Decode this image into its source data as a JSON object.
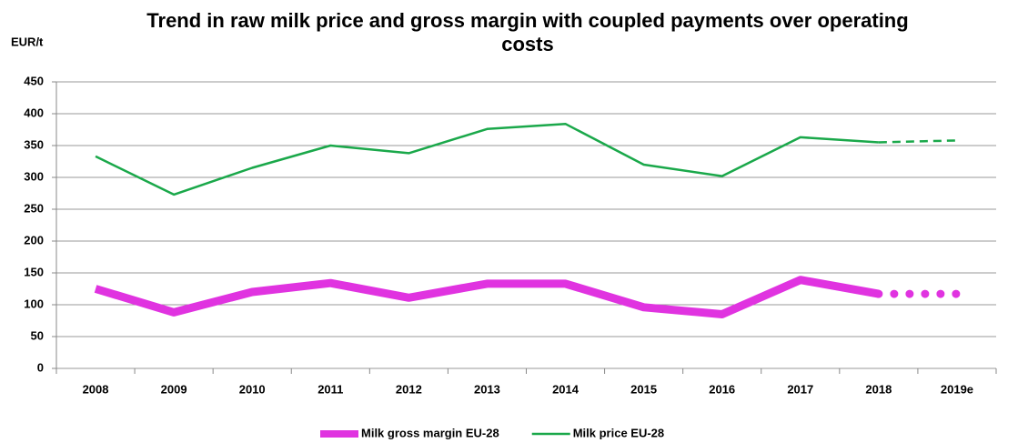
{
  "chart_data": {
    "type": "line",
    "title": "Trend in raw milk price and gross margin with coupled payments over operating costs",
    "y_label": "EUR/t",
    "categories": [
      "2008",
      "2009",
      "2010",
      "2011",
      "2012",
      "2013",
      "2014",
      "2015",
      "2016",
      "2017",
      "2018",
      "2019e"
    ],
    "series": [
      {
        "name": "Milk gross margin EU-28",
        "color": "#e033e0",
        "line_width": 9,
        "estimate_style": "dotted",
        "values": [
          125,
          88,
          120,
          134,
          111,
          133,
          133,
          96,
          85,
          139,
          117,
          117
        ]
      },
      {
        "name": "Milk price EU-28",
        "color": "#1aa84a",
        "line_width": 2.5,
        "estimate_style": "dashed",
        "values": [
          333,
          273,
          315,
          350,
          338,
          376,
          384,
          320,
          302,
          363,
          355,
          358
        ]
      }
    ],
    "last_value_estimated": true,
    "ylim": [
      0,
      450
    ],
    "yticks": [
      0,
      50,
      100,
      150,
      200,
      250,
      300,
      350,
      400,
      450
    ],
    "grid": true,
    "legend": "bottom"
  }
}
